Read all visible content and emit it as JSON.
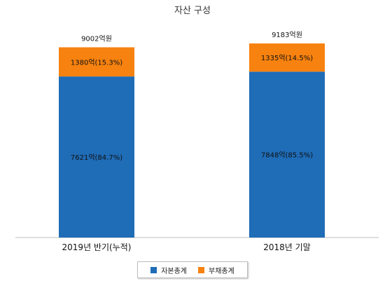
{
  "chart_data": {
    "type": "bar",
    "stacked": true,
    "title": "자산 구성",
    "categories": [
      "2019년 반기(누적)",
      "2018년 기말"
    ],
    "series": [
      {
        "name": "자본총계",
        "color": "#1f6cb7",
        "values": [
          7621,
          7848
        ],
        "labels": [
          "7621억(84.7%)",
          "7848억(85.5%)"
        ]
      },
      {
        "name": "부채총계",
        "color": "#f7820f",
        "values": [
          1380,
          1335
        ],
        "labels": [
          "1380억(15.3%)",
          "1335억(14.5%)"
        ]
      }
    ],
    "totals": [
      9002,
      9183
    ],
    "total_labels": [
      "9002억원",
      "9183억원"
    ],
    "ylim": [
      0,
      9183
    ],
    "grid": false,
    "legend_position": "bottom"
  }
}
